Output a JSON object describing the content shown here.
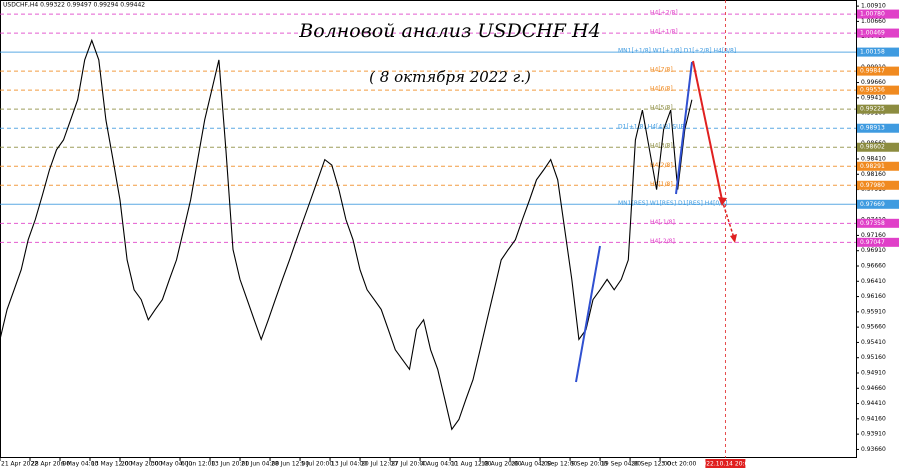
{
  "chart_data": {
    "type": "line",
    "title": "Волновой анализ USDCHF H4",
    "subtitle": "( 8 октября 2022 г.)",
    "header": "USDCHF,H4  0.99322 0.99497 0.99294 0.99442",
    "color": "#000000",
    "x": [
      0,
      8,
      16,
      24,
      32,
      40,
      48,
      56,
      64,
      72,
      80,
      88,
      96,
      104,
      112,
      120,
      128,
      136,
      144,
      152,
      160,
      168,
      176,
      184,
      192,
      200,
      208,
      216,
      224,
      232,
      240,
      248,
      256,
      264,
      272,
      280,
      288,
      296,
      304,
      312,
      320,
      328,
      336,
      344,
      352,
      360,
      368,
      376,
      384,
      392,
      400,
      408,
      416,
      424,
      432,
      440,
      448,
      456,
      464,
      472,
      480,
      488,
      496,
      504,
      512,
      520,
      528,
      536,
      544,
      552,
      560,
      568,
      576,
      584,
      592,
      600,
      608,
      616,
      624,
      632,
      640,
      648,
      656,
      664,
      672,
      680,
      688,
      696,
      704,
      712,
      720,
      728,
      736,
      744,
      752,
      760,
      768,
      776,
      784
    ],
    "values": [
      0.9546,
      0.9595,
      0.9627,
      0.966,
      0.9709,
      0.9742,
      0.9782,
      0.9823,
      0.9856,
      0.9872,
      0.9905,
      0.9938,
      1.0003,
      1.0035,
      1.0003,
      0.9905,
      0.984,
      0.9774,
      0.9676,
      0.9627,
      0.9611,
      0.9578,
      0.9595,
      0.9611,
      0.9644,
      0.9676,
      0.9725,
      0.9774,
      0.984,
      0.9905,
      0.9954,
      1.0003,
      0.9856,
      0.9693,
      0.9644,
      0.9611,
      0.9578,
      0.9546,
      0.9578,
      0.9611,
      0.9644,
      0.9676,
      0.9709,
      0.9742,
      0.9774,
      0.9807,
      0.984,
      0.9831,
      0.9791,
      0.9742,
      0.9709,
      0.966,
      0.9627,
      0.9611,
      0.9595,
      0.9562,
      0.9529,
      0.9513,
      0.9497,
      0.9562,
      0.9578,
      0.9529,
      0.9497,
      0.9448,
      0.9399,
      0.9415,
      0.9448,
      0.948,
      0.9529,
      0.9578,
      0.9627,
      0.9676,
      0.9693,
      0.9709,
      0.9742,
      0.9774,
      0.9807,
      0.9823,
      0.984,
      0.9807,
      0.9725,
      0.9644,
      0.9546,
      0.9562,
      0.9611,
      0.9627,
      0.9644,
      0.9627,
      0.9644,
      0.9676,
      0.9872,
      0.9921,
      0.9856,
      0.9791,
      0.9889,
      0.9921,
      0.9791,
      0.9889,
      0.9938
    ],
    "xlim": [
      0,
      970
    ],
    "ylim": [
      0.9352,
      1.0101
    ],
    "xticks": [
      {
        "value": 0,
        "label": "21 Apr 2022"
      },
      {
        "value": 34,
        "label": "28 Apr 20:00"
      },
      {
        "value": 68,
        "label": "6 May 04:00"
      },
      {
        "value": 102,
        "label": "13 May 12:00"
      },
      {
        "value": 136,
        "label": "20 May 20:00"
      },
      {
        "value": 170,
        "label": "30 May 04:00"
      },
      {
        "value": 204,
        "label": "6 Jun 12:00"
      },
      {
        "value": 238,
        "label": "13 Jun 20:00"
      },
      {
        "value": 272,
        "label": "21 Jun 04:00"
      },
      {
        "value": 306,
        "label": "28 Jun 12:00"
      },
      {
        "value": 340,
        "label": "5 Jul 20:00"
      },
      {
        "value": 374,
        "label": "13 Jul 04:00"
      },
      {
        "value": 408,
        "label": "20 Jul 12:00"
      },
      {
        "value": 442,
        "label": "27 Jul 20:00"
      },
      {
        "value": 476,
        "label": "4 Aug 04:00"
      },
      {
        "value": 510,
        "label": "11 Aug 12:00"
      },
      {
        "value": 544,
        "label": "18 Aug 20:00"
      },
      {
        "value": 578,
        "label": "26 Aug 04:00"
      },
      {
        "value": 612,
        "label": "2 Sep 12:00"
      },
      {
        "value": 646,
        "label": "9 Sep 20:00"
      },
      {
        "value": 680,
        "label": "19 Sep 04:00"
      },
      {
        "value": 714,
        "label": "26 Sep 12:00"
      },
      {
        "value": 748,
        "label": "3 Oct 20:00"
      }
    ],
    "yticks": [
      {
        "value": 1.0091,
        "label": "1.00910"
      },
      {
        "value": 1.0066,
        "label": "1.00660"
      },
      {
        "value": 1.0041,
        "label": "1.00410"
      },
      {
        "value": 1.0016,
        "label": "1.00160"
      },
      {
        "value": 0.9991,
        "label": "0.99910"
      },
      {
        "value": 0.9966,
        "label": "0.99660"
      },
      {
        "value": 0.9941,
        "label": "0.99410"
      },
      {
        "value": 0.9916,
        "label": "0.99160"
      },
      {
        "value": 0.9891,
        "label": "0.98910"
      },
      {
        "value": 0.9866,
        "label": "0.98660"
      },
      {
        "value": 0.9841,
        "label": "0.98410"
      },
      {
        "value": 0.9816,
        "label": "0.98160"
      },
      {
        "value": 0.9791,
        "label": "0.97910"
      },
      {
        "value": 0.9766,
        "label": "0.97660"
      },
      {
        "value": 0.9741,
        "label": "0.97410"
      },
      {
        "value": 0.9716,
        "label": "0.97160"
      },
      {
        "value": 0.9691,
        "label": "0.96910"
      },
      {
        "value": 0.9666,
        "label": "0.96660"
      },
      {
        "value": 0.9641,
        "label": "0.96410"
      },
      {
        "value": 0.9616,
        "label": "0.96160"
      },
      {
        "value": 0.9591,
        "label": "0.95910"
      },
      {
        "value": 0.9566,
        "label": "0.95660"
      },
      {
        "value": 0.9541,
        "label": "0.95410"
      },
      {
        "value": 0.9516,
        "label": "0.95160"
      },
      {
        "value": 0.9491,
        "label": "0.94910"
      },
      {
        "value": 0.9466,
        "label": "0.94660"
      },
      {
        "value": 0.9441,
        "label": "0.94410"
      },
      {
        "value": 0.9416,
        "label": "0.94160"
      },
      {
        "value": 0.9391,
        "label": "0.93910"
      },
      {
        "value": 0.9366,
        "label": "0.93660"
      }
    ],
    "levels": [
      {
        "name": "H4[+2/8]",
        "value": 1.0078,
        "label": "1.00780",
        "color": "#e040c8",
        "style": "dashed"
      },
      {
        "name": "H4[+1/8]",
        "value": 1.00469,
        "label": "1.00469",
        "color": "#e040c8",
        "style": "dashed"
      },
      {
        "name": "MN1[+1/8] W1[+1/8] D1[+2/8] H4[8/8]",
        "value": 1.00158,
        "label": "1.00158",
        "color": "#3f9be0",
        "style": "solid"
      },
      {
        "name": "H4[7/8]",
        "value": 0.99847,
        "label": "0.99847",
        "color": "#f08a20",
        "style": "dashed"
      },
      {
        "name": "H4[6/8]",
        "value": 0.99536,
        "label": "0.99536",
        "color": "#f08a20",
        "style": "dashed"
      },
      {
        "name": "H4[5/8]",
        "value": 0.99225,
        "label": "0.99225",
        "color": "#8c8c40",
        "style": "dashed"
      },
      {
        "name": "D1[+1/8] H4[4/8] SUP",
        "value": 0.98913,
        "label": "0.98913",
        "color": "#3f9be0",
        "style": "dashed"
      },
      {
        "name": "H4[3/8]",
        "value": 0.98602,
        "label": "0.98602",
        "color": "#8c8c40",
        "style": "dashed"
      },
      {
        "name": "H4[2/8]",
        "value": 0.98291,
        "label": "0.98291",
        "color": "#f08a20",
        "style": "dashed"
      },
      {
        "name": "H4[1/8]",
        "value": 0.9798,
        "label": "0.97980",
        "color": "#f08a20",
        "style": "dashed"
      },
      {
        "name": "MN1[RES] W1[RES] D1[RES] H4[0/8]",
        "value": 0.97669,
        "label": "0.97669",
        "color": "#3f9be0",
        "style": "solid"
      },
      {
        "name": "H4[-1/8]",
        "value": 0.97358,
        "label": "0.97358",
        "color": "#e040c8",
        "style": "dashed"
      },
      {
        "name": "H4[-2/8]",
        "value": 0.97047,
        "label": "0.97047",
        "color": "#e040c8",
        "style": "dashed"
      }
    ],
    "marker": {
      "value": 822,
      "label": "2022.10.14 20:00",
      "color": "#e02020"
    }
  }
}
